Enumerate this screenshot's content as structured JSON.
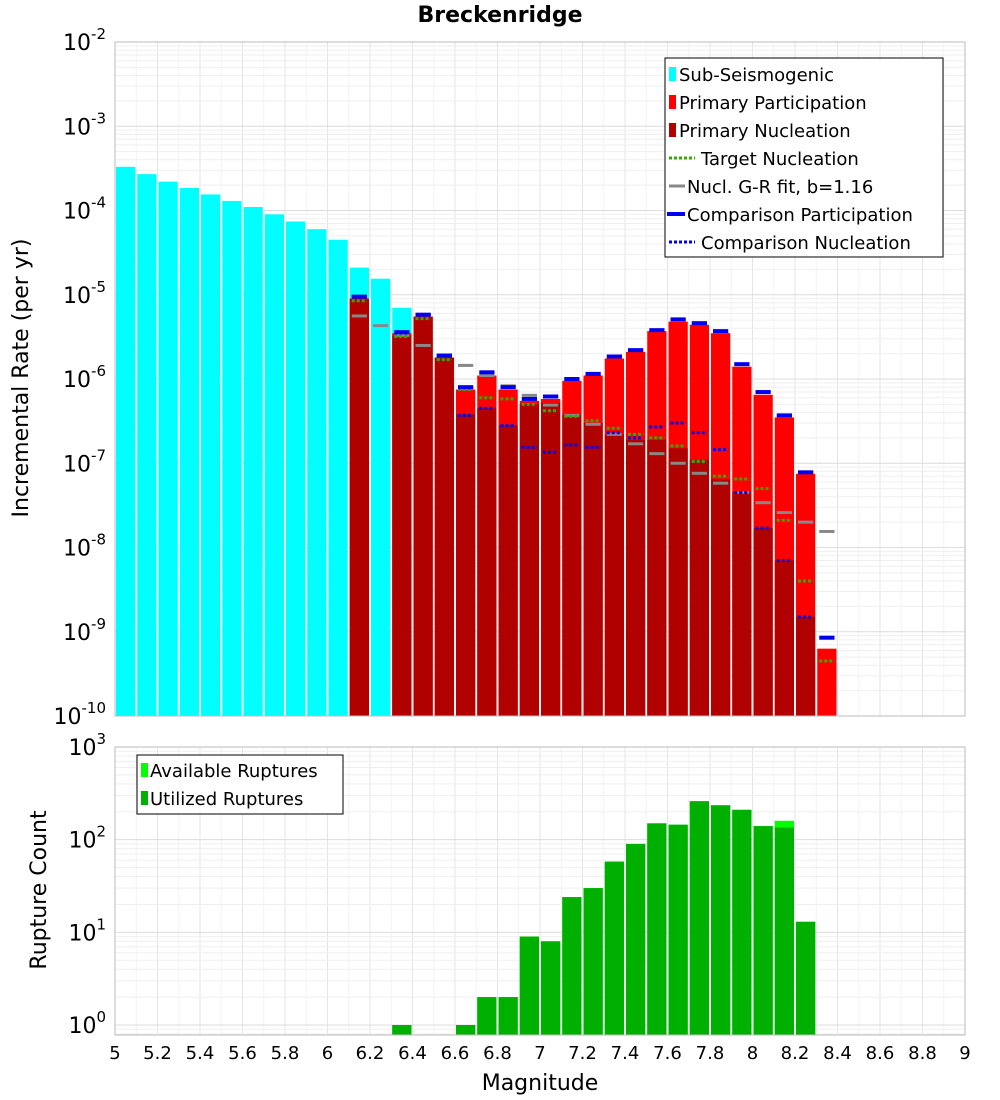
{
  "chart_data": [
    {
      "type": "bar",
      "title": "Breckenridge",
      "xlabel": "",
      "ylabel": "Incremental Rate (per yr)",
      "xlim": [
        5,
        9
      ],
      "ylim": [
        1e-10,
        0.01
      ],
      "y_scale": "log",
      "grid": true,
      "legend_placement": "top-right",
      "y_tick_exponents": [
        "-10",
        "-9",
        "-8",
        "-7",
        "-6",
        "-5",
        "-4",
        "-3",
        "-2"
      ],
      "colors": {
        "sub_seismogenic": "#00ffff",
        "primary_participation": "#ff0000",
        "primary_nucleation": "#b00000",
        "target_nucleation": "#33aa00",
        "gr_fit": "#888888",
        "comparison_participation": "#0000ee",
        "comparison_nucleation": "#0000ee"
      },
      "legend": [
        {
          "label": "Sub-Seismogenic",
          "key": "sub_seismogenic",
          "style": "box"
        },
        {
          "label": "Primary Participation",
          "key": "primary_participation",
          "style": "box"
        },
        {
          "label": "Primary Nucleation",
          "key": "primary_nucleation",
          "style": "box"
        },
        {
          "label": "Target Nucleation",
          "key": "target_nucleation",
          "style": "dotted"
        },
        {
          "label": "Nucl. G-R fit, b=1.16",
          "key": "gr_fit",
          "style": "line"
        },
        {
          "label": "Comparison Participation",
          "key": "comparison_participation",
          "style": "thickline"
        },
        {
          "label": "Comparison Nucleation",
          "key": "comparison_nucleation",
          "style": "dotted"
        }
      ],
      "bin_width": 0.1,
      "sub_seismogenic": {
        "x": [
          5.05,
          5.15,
          5.25,
          5.35,
          5.45,
          5.55,
          5.65,
          5.75,
          5.85,
          5.95,
          6.05,
          6.15,
          6.25,
          6.35
        ],
        "y": [
          0.00033,
          0.00027,
          0.00022,
          0.000185,
          0.000155,
          0.00013,
          0.00011,
          9e-05,
          7.4e-05,
          6e-05,
          4.5e-05,
          2.1e-05,
          1.55e-05,
          7e-06
        ]
      },
      "primary_participation": {
        "x": [
          6.15,
          6.35,
          6.45,
          6.55,
          6.65,
          6.75,
          6.85,
          6.95,
          7.05,
          7.15,
          7.25,
          7.35,
          7.45,
          7.55,
          7.65,
          7.75,
          7.85,
          7.95,
          8.05,
          8.15,
          8.25,
          8.35
        ],
        "y": [
          9e-06,
          3.5e-06,
          5.5e-06,
          1.8e-06,
          7.5e-07,
          1.1e-06,
          7.5e-07,
          5.5e-07,
          5.8e-07,
          9.5e-07,
          1.1e-06,
          1.75e-06,
          2.1e-06,
          3.7e-06,
          4.8e-06,
          4.4e-06,
          3.5e-06,
          1.4e-06,
          6.5e-07,
          3.5e-07,
          7.5e-08,
          6.3e-10
        ]
      },
      "primary_nucleation": {
        "x": [
          6.15,
          6.35,
          6.45,
          6.55,
          6.65,
          6.75,
          6.85,
          6.95,
          7.05,
          7.15,
          7.25,
          7.35,
          7.45,
          7.55,
          7.65,
          7.75,
          7.85,
          7.95,
          8.05,
          8.15,
          8.25
        ],
        "y": [
          9e-06,
          3.3e-06,
          5.5e-06,
          1.8e-06,
          3.8e-07,
          4.5e-07,
          2.8e-07,
          5e-07,
          5.2e-07,
          3.8e-07,
          3e-07,
          2.2e-07,
          1.9e-07,
          1.9e-07,
          1.5e-07,
          1.1e-07,
          6.5e-08,
          4.6e-08,
          1.7e-08,
          7e-09,
          1.5e-09
        ]
      },
      "target_nucleation": {
        "x": [
          6.15,
          6.35,
          6.45,
          6.55,
          6.65,
          6.75,
          6.85,
          6.95,
          7.05,
          7.15,
          7.25,
          7.35,
          7.45,
          7.55,
          7.65,
          7.75,
          7.85,
          7.95,
          8.05,
          8.15,
          8.25,
          8.35
        ],
        "y": [
          8.5e-06,
          3.2e-06,
          5.2e-06,
          1.7e-06,
          7.5e-07,
          6e-07,
          5.8e-07,
          5e-07,
          4.2e-07,
          3.6e-07,
          3.2e-07,
          2.6e-07,
          2.2e-07,
          2e-07,
          1.6e-07,
          1.05e-07,
          7e-08,
          6.5e-08,
          5e-08,
          2.1e-08,
          4e-09,
          4.5e-10
        ]
      },
      "gr_fit": {
        "x": [
          6.15,
          6.25,
          6.35,
          6.45,
          6.55,
          6.65,
          6.75,
          6.85,
          6.95,
          7.05,
          7.15,
          7.25,
          7.35,
          7.45,
          7.55,
          7.65,
          7.75,
          7.85,
          7.95,
          8.05,
          8.15,
          8.25,
          8.35
        ],
        "y": [
          5.6e-06,
          4.3e-06,
          3.3e-06,
          2.5e-06,
          1.9e-06,
          1.45e-06,
          1.1e-06,
          8.3e-07,
          6.4e-07,
          4.9e-07,
          3.7e-07,
          2.9e-07,
          2.2e-07,
          1.7e-07,
          1.3e-07,
          1e-07,
          7.6e-08,
          5.8e-08,
          4.5e-08,
          3.4e-08,
          2.6e-08,
          2e-08,
          1.55e-08
        ]
      },
      "comparison_participation": {
        "x": [
          6.15,
          6.35,
          6.45,
          6.55,
          6.65,
          6.75,
          6.85,
          6.95,
          7.05,
          7.15,
          7.25,
          7.35,
          7.45,
          7.55,
          7.65,
          7.75,
          7.85,
          7.95,
          8.05,
          8.15,
          8.25,
          8.35
        ],
        "y": [
          9.5e-06,
          3.6e-06,
          5.8e-06,
          1.9e-06,
          8e-07,
          1.2e-06,
          8e-07,
          5.8e-07,
          6.2e-07,
          1e-06,
          1.15e-06,
          1.85e-06,
          2.2e-06,
          3.8e-06,
          5.1e-06,
          4.6e-06,
          3.7e-06,
          1.5e-06,
          7e-07,
          3.7e-07,
          7.8e-08,
          8.5e-10
        ]
      },
      "comparison_nucleation": {
        "x": [
          6.15,
          6.35,
          6.45,
          6.55,
          6.65,
          6.75,
          6.85,
          6.95,
          7.05,
          7.15,
          7.25,
          7.35,
          7.45,
          7.55,
          7.65,
          7.75,
          7.85,
          7.95,
          8.05,
          8.15,
          8.25
        ],
        "y": [
          9.5e-06,
          3.5e-06,
          5.8e-06,
          1.9e-06,
          3.7e-07,
          4.5e-07,
          2.8e-07,
          1.55e-07,
          1.35e-07,
          1.65e-07,
          1.55e-07,
          2.3e-07,
          2e-07,
          2.7e-07,
          3e-07,
          2.3e-07,
          1.45e-07,
          4.5e-08,
          1.7e-08,
          7e-09,
          1.5e-09
        ]
      }
    },
    {
      "type": "bar",
      "xlabel": "Magnitude",
      "ylabel": "Rupture Count",
      "xlim": [
        5,
        9
      ],
      "ylim": [
        0.78,
        1000
      ],
      "y_scale": "log",
      "grid": true,
      "legend_placement": "top-left",
      "x_ticks": [
        "5",
        "5.2",
        "5.4",
        "5.6",
        "5.8",
        "6",
        "6.2",
        "6.4",
        "6.6",
        "6.8",
        "7",
        "7.2",
        "7.4",
        "7.6",
        "7.8",
        "8",
        "8.2",
        "8.4",
        "8.6",
        "8.8",
        "9"
      ],
      "y_tick_exponents": [
        "0",
        "1",
        "2",
        "3"
      ],
      "colors": {
        "available": "#00ff00",
        "utilized": "#00b000"
      },
      "legend": [
        {
          "label": "Available Ruptures",
          "key": "available"
        },
        {
          "label": "Utilized Ruptures",
          "key": "utilized"
        }
      ],
      "bin_width": 0.1,
      "available": {
        "x": [
          6.35,
          6.65,
          6.75,
          6.85,
          6.95,
          7.05,
          7.15,
          7.25,
          7.35,
          7.45,
          7.55,
          7.65,
          7.75,
          7.85,
          7.95,
          8.05,
          8.15,
          8.25
        ],
        "y": [
          1,
          1,
          2,
          2,
          9,
          8,
          24,
          30,
          58,
          90,
          150,
          145,
          260,
          235,
          210,
          140,
          160,
          13
        ]
      },
      "utilized": {
        "x": [
          6.35,
          6.65,
          6.75,
          6.85,
          6.95,
          7.05,
          7.15,
          7.25,
          7.35,
          7.45,
          7.55,
          7.65,
          7.75,
          7.85,
          7.95,
          8.05,
          8.15,
          8.25
        ],
        "y": [
          1,
          1,
          2,
          2,
          9,
          8,
          24,
          30,
          58,
          90,
          150,
          145,
          260,
          235,
          210,
          140,
          135,
          13
        ]
      }
    }
  ]
}
